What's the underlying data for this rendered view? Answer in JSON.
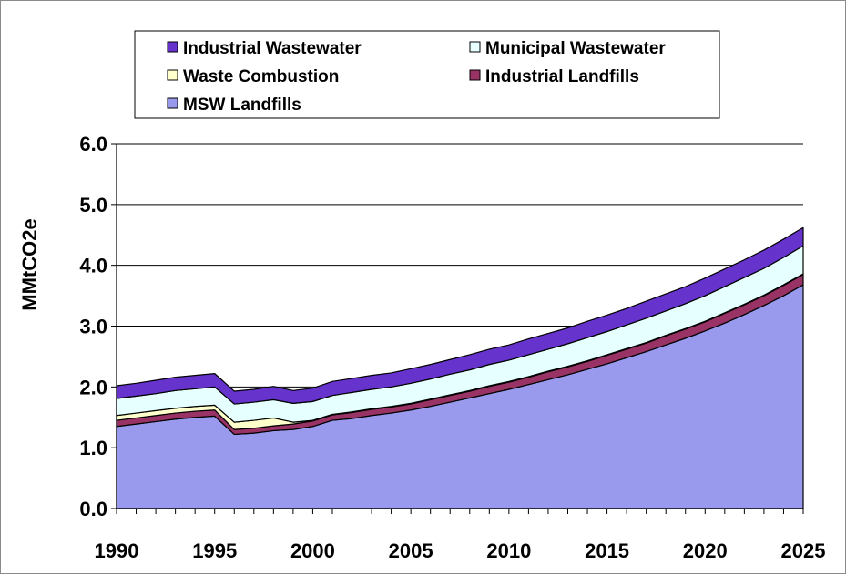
{
  "chart_data": {
    "type": "area",
    "stacked": true,
    "ylabel": "MMtCO2e",
    "xlabel": "",
    "ylim": [
      0,
      6
    ],
    "yticks": [
      "0.0",
      "1.0",
      "2.0",
      "3.0",
      "4.0",
      "5.0",
      "6.0"
    ],
    "xlim": [
      1990,
      2025
    ],
    "xticks": [
      "1990",
      "1995",
      "2000",
      "2005",
      "2010",
      "2015",
      "2020",
      "2025"
    ],
    "grid": "horizontal",
    "legend_position": "top",
    "x": [
      1990,
      1991,
      1992,
      1993,
      1994,
      1995,
      1996,
      1997,
      1998,
      1999,
      2000,
      2001,
      2002,
      2003,
      2004,
      2005,
      2006,
      2007,
      2008,
      2009,
      2010,
      2011,
      2012,
      2013,
      2014,
      2015,
      2016,
      2017,
      2018,
      2019,
      2020,
      2021,
      2022,
      2023,
      2024,
      2025
    ],
    "series": [
      {
        "name": "MSW Landfills",
        "color": "#9999ee",
        "values": [
          1.35,
          1.39,
          1.43,
          1.47,
          1.5,
          1.52,
          1.22,
          1.24,
          1.28,
          1.3,
          1.35,
          1.45,
          1.48,
          1.53,
          1.57,
          1.62,
          1.68,
          1.75,
          1.82,
          1.89,
          1.96,
          2.04,
          2.12,
          2.2,
          2.29,
          2.38,
          2.48,
          2.58,
          2.69,
          2.8,
          2.92,
          3.05,
          3.19,
          3.34,
          3.5,
          3.68
        ]
      },
      {
        "name": "Industrial Landfills",
        "color": "#993366",
        "values": [
          0.1,
          0.1,
          0.1,
          0.1,
          0.1,
          0.1,
          0.08,
          0.08,
          0.08,
          0.09,
          0.09,
          0.09,
          0.1,
          0.1,
          0.1,
          0.1,
          0.11,
          0.11,
          0.11,
          0.12,
          0.12,
          0.12,
          0.13,
          0.13,
          0.13,
          0.14,
          0.14,
          0.14,
          0.15,
          0.15,
          0.15,
          0.16,
          0.16,
          0.16,
          0.17,
          0.17
        ]
      },
      {
        "name": "Waste Combustion",
        "color": "#ffffcc",
        "values": [
          0.08,
          0.08,
          0.08,
          0.08,
          0.08,
          0.08,
          0.12,
          0.13,
          0.13,
          0.03,
          0.01,
          0.01,
          0.01,
          0.01,
          0.01,
          0.01,
          0.01,
          0.01,
          0.01,
          0.01,
          0.01,
          0.01,
          0.01,
          0.01,
          0.01,
          0.01,
          0.01,
          0.01,
          0.01,
          0.01,
          0.01,
          0.01,
          0.01,
          0.01,
          0.01,
          0.01
        ]
      },
      {
        "name": "Municipal Wastewater",
        "color": "#e6ffff",
        "values": [
          0.28,
          0.28,
          0.28,
          0.29,
          0.29,
          0.3,
          0.3,
          0.3,
          0.3,
          0.31,
          0.31,
          0.31,
          0.32,
          0.32,
          0.32,
          0.33,
          0.33,
          0.34,
          0.34,
          0.35,
          0.35,
          0.36,
          0.36,
          0.37,
          0.38,
          0.38,
          0.39,
          0.4,
          0.4,
          0.41,
          0.42,
          0.43,
          0.44,
          0.44,
          0.45,
          0.46
        ]
      },
      {
        "name": "Industrial Wastewater",
        "color": "#6633cc",
        "values": [
          0.21,
          0.21,
          0.22,
          0.22,
          0.22,
          0.22,
          0.21,
          0.21,
          0.22,
          0.21,
          0.22,
          0.23,
          0.23,
          0.23,
          0.23,
          0.24,
          0.24,
          0.24,
          0.25,
          0.25,
          0.25,
          0.26,
          0.26,
          0.26,
          0.27,
          0.27,
          0.27,
          0.28,
          0.28,
          0.28,
          0.29,
          0.29,
          0.29,
          0.3,
          0.3,
          0.3
        ]
      }
    ],
    "legend_order": [
      "Industrial Wastewater",
      "Municipal Wastewater",
      "Waste Combustion",
      "Industrial Landfills",
      "MSW Landfills"
    ]
  }
}
